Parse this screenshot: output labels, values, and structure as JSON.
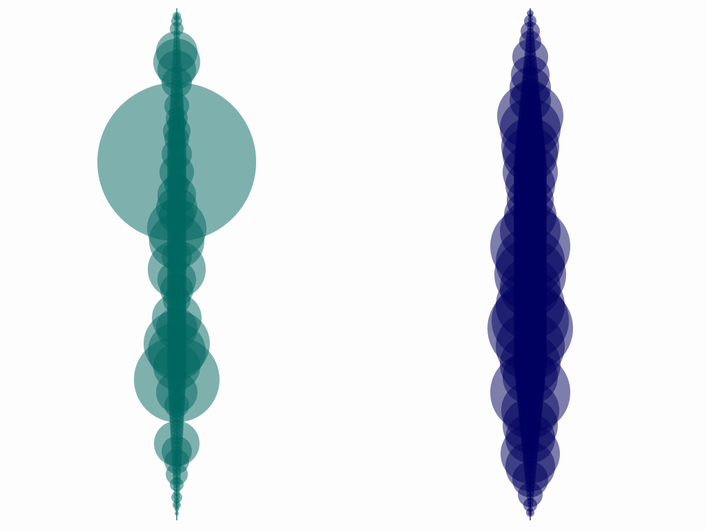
{
  "chart_data": {
    "type": "scatter",
    "title": "",
    "xlabel": "",
    "ylabel": "",
    "grid": false,
    "legend": "none",
    "xlim": [
      0,
      2
    ],
    "ylim": [
      0,
      1
    ],
    "series": [
      {
        "color": "#006660",
        "opacity": 0.5,
        "x_center": 0.5,
        "points": [
          [
            0.985,
            6
          ],
          [
            0.975,
            8
          ],
          [
            0.96,
            10
          ],
          [
            0.915,
            30
          ],
          [
            0.895,
            34
          ],
          [
            0.88,
            28
          ],
          [
            0.855,
            22
          ],
          [
            0.81,
            18
          ],
          [
            0.785,
            16
          ],
          [
            0.775,
            14
          ],
          [
            0.76,
            20
          ],
          [
            0.745,
            18
          ],
          [
            0.715,
            22
          ],
          [
            0.7,
            115
          ],
          [
            0.68,
            25
          ],
          [
            0.655,
            18
          ],
          [
            0.635,
            28
          ],
          [
            0.61,
            30
          ],
          [
            0.595,
            26
          ],
          [
            0.57,
            43
          ],
          [
            0.545,
            40
          ],
          [
            0.515,
            22
          ],
          [
            0.49,
            42
          ],
          [
            0.47,
            28
          ],
          [
            0.45,
            24
          ],
          [
            0.43,
            20
          ],
          [
            0.395,
            36
          ],
          [
            0.375,
            30
          ],
          [
            0.345,
            48
          ],
          [
            0.33,
            42
          ],
          [
            0.3,
            34
          ],
          [
            0.275,
            62
          ],
          [
            0.25,
            30
          ],
          [
            0.225,
            18
          ],
          [
            0.15,
            33
          ],
          [
            0.135,
            22
          ],
          [
            0.115,
            18
          ],
          [
            0.09,
            16
          ],
          [
            0.07,
            10
          ],
          [
            0.045,
            8
          ],
          [
            0.03,
            6
          ]
        ]
      },
      {
        "color": "#00005e",
        "opacity": 0.5,
        "x_center": 1.5,
        "points": [
          [
            0.99,
            5
          ],
          [
            0.975,
            9
          ],
          [
            0.955,
            14
          ],
          [
            0.935,
            16
          ],
          [
            0.905,
            26
          ],
          [
            0.87,
            28
          ],
          [
            0.845,
            30
          ],
          [
            0.82,
            30
          ],
          [
            0.79,
            48
          ],
          [
            0.765,
            44
          ],
          [
            0.73,
            42
          ],
          [
            0.715,
            40
          ],
          [
            0.68,
            40
          ],
          [
            0.655,
            36
          ],
          [
            0.625,
            34
          ],
          [
            0.595,
            38
          ],
          [
            0.565,
            44
          ],
          [
            0.535,
            58
          ],
          [
            0.505,
            50
          ],
          [
            0.48,
            52
          ],
          [
            0.455,
            44
          ],
          [
            0.42,
            50
          ],
          [
            0.39,
            56
          ],
          [
            0.375,
            62
          ],
          [
            0.34,
            50
          ],
          [
            0.305,
            44
          ],
          [
            0.28,
            40
          ],
          [
            0.25,
            58
          ],
          [
            0.215,
            42
          ],
          [
            0.185,
            40
          ],
          [
            0.16,
            36
          ],
          [
            0.13,
            43
          ],
          [
            0.105,
            36
          ],
          [
            0.08,
            26
          ],
          [
            0.05,
            18
          ],
          [
            0.03,
            10
          ],
          [
            0.015,
            6
          ]
        ]
      }
    ]
  }
}
